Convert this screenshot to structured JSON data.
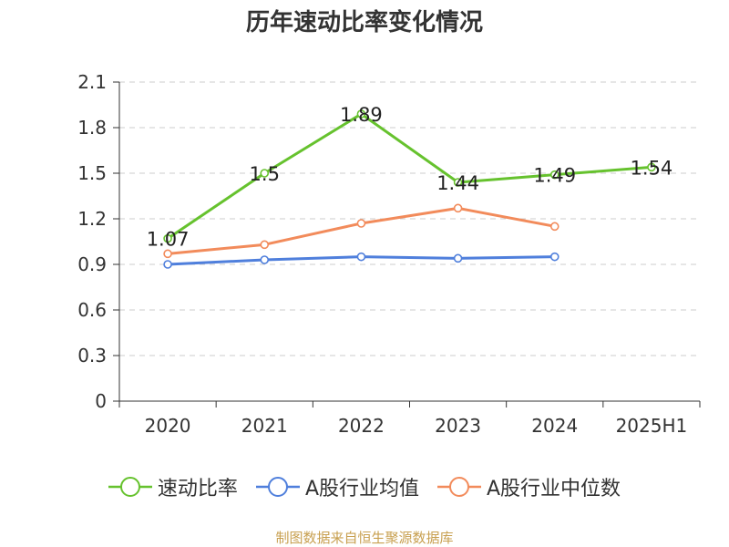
{
  "chart_data": {
    "type": "line",
    "title": "历年速动比率变化情况",
    "categories": [
      "2020",
      "2021",
      "2022",
      "2023",
      "2024",
      "2025H1"
    ],
    "xlabel": "",
    "ylabel": "",
    "ylim": [
      0,
      2.1
    ],
    "yticks": [
      "0",
      "0.3",
      "0.6",
      "0.9",
      "1.2",
      "1.5",
      "1.8",
      "2.1"
    ],
    "grid": true,
    "legend_position": "bottom",
    "series": [
      {
        "name": "速动比率",
        "color": "#66c22e",
        "values": [
          1.07,
          1.5,
          1.89,
          1.44,
          1.49,
          1.54
        ],
        "labels": [
          "1.07",
          "1.5",
          "1.89",
          "1.44",
          "1.49",
          "1.54"
        ],
        "show_labels": true
      },
      {
        "name": "A股行业均值",
        "color": "#4f7fdc",
        "values": [
          0.9,
          0.93,
          0.95,
          0.94,
          0.95,
          null
        ],
        "show_labels": false
      },
      {
        "name": "A股行业中位数",
        "color": "#f28b5b",
        "values": [
          0.97,
          1.03,
          1.17,
          1.27,
          1.15,
          null
        ],
        "show_labels": false
      }
    ]
  },
  "source": "制图数据来自恒生聚源数据库"
}
